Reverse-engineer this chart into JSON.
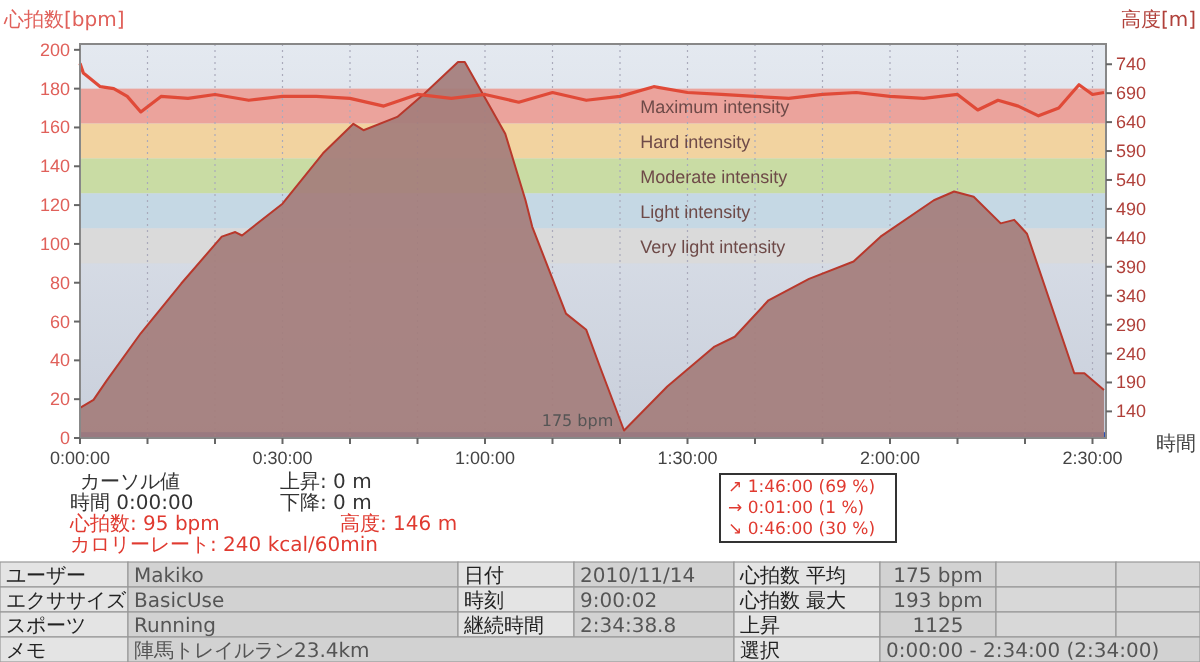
{
  "chart_data": {
    "type": "area",
    "ylabel": "心拍数[bpm]",
    "y2label": "高度[m]",
    "xlabel": "時間",
    "xlim": [
      0,
      152
    ],
    "xticks": [
      {
        "value": 0,
        "label": "0:00:00"
      },
      {
        "value": 10,
        "label": null
      },
      {
        "value": 20,
        "label": null
      },
      {
        "value": 30,
        "label": "0:30:00"
      },
      {
        "value": 40,
        "label": null
      },
      {
        "value": 50,
        "label": null
      },
      {
        "value": 60,
        "label": "1:00:00"
      },
      {
        "value": 70,
        "label": null
      },
      {
        "value": 80,
        "label": null
      },
      {
        "value": 90,
        "label": "1:30:00"
      },
      {
        "value": 100,
        "label": null
      },
      {
        "value": 110,
        "label": null
      },
      {
        "value": 120,
        "label": "2:00:00"
      },
      {
        "value": 130,
        "label": null
      },
      {
        "value": 140,
        "label": null
      },
      {
        "value": 150,
        "label": "2:30:00"
      }
    ],
    "ylim": [
      0,
      203
    ],
    "yticks": [
      0,
      20,
      40,
      60,
      80,
      100,
      120,
      140,
      160,
      180,
      200
    ],
    "y2lim": [
      94,
      775
    ],
    "y2ticks": [
      140,
      190,
      240,
      290,
      340,
      390,
      440,
      490,
      540,
      590,
      640,
      690,
      740
    ],
    "grid": "x",
    "bands": [
      {
        "axis": "y",
        "from": 162,
        "to": 180,
        "label": "Maximum intensity",
        "color": "#eba39c"
      },
      {
        "axis": "y",
        "from": 144,
        "to": 162,
        "label": "Hard intensity",
        "color": "#f2d3a0"
      },
      {
        "axis": "y",
        "from": 126,
        "to": 144,
        "label": "Moderate intensity",
        "color": "#c9dca4"
      },
      {
        "axis": "y",
        "from": 108,
        "to": 126,
        "label": "Light intensity",
        "color": "#c5d8e4"
      },
      {
        "axis": "y",
        "from": 90,
        "to": 108,
        "label": "Very light intensity",
        "color": "#dadada"
      },
      {
        "axis": "y",
        "from": 0,
        "to": 3,
        "color": "#2a50b8"
      }
    ],
    "series": [
      {
        "type": "area",
        "axis": "y2",
        "color": "#a47d7b",
        "x": [
          0,
          2,
          4,
          9,
          15,
          21,
          23,
          24,
          30,
          36,
          40.5,
          42,
          47,
          51,
          56,
          57,
          63,
          66,
          67,
          72,
          75,
          77,
          80.6,
          87,
          94,
          97,
          102,
          108,
          114.6,
          118.6,
          126.5,
          129.5,
          132.4,
          136.4,
          138.4,
          140.3,
          147.3,
          148.8,
          151.7
        ],
        "values": [
          146,
          160,
          194,
          275,
          361,
          442,
          450,
          444,
          499,
          586,
          637,
          626,
          649,
          689,
          744,
          744,
          620,
          505,
          459,
          309,
          281,
          218,
          107,
          183,
          252,
          269,
          332,
          369,
          399,
          442,
          505,
          520,
          511,
          465,
          471,
          447,
          206,
          206,
          177
        ]
      },
      {
        "type": "line",
        "color": "#e04a38",
        "x": [
          0,
          0.5,
          3,
          5,
          7,
          9,
          12,
          16,
          20,
          25,
          30,
          35,
          40,
          45,
          50,
          55,
          60,
          65,
          70,
          75,
          80,
          85,
          90,
          95,
          100,
          105,
          110,
          115,
          120,
          125,
          130,
          133,
          136,
          139,
          142,
          145,
          148,
          150,
          151.7
        ],
        "values": [
          193,
          188,
          181,
          180,
          176,
          168,
          176,
          175,
          177,
          174,
          176,
          176,
          175,
          171,
          177,
          175,
          177,
          173,
          178,
          174,
          176,
          181,
          178,
          177,
          176,
          175,
          177,
          178,
          176,
          175,
          177,
          169,
          174,
          171,
          166,
          170,
          182,
          177,
          178
        ]
      }
    ],
    "annotations": [
      "175 bpm",
      "カーソル値",
      "時間 0:00:00",
      "心拍数: 95 bpm",
      "カロリーレート: 240 kcal/60min",
      "高度: 146 m",
      "上昇: 0 m",
      "下降: 0 m",
      "↗ 1:46:00 (69 %)",
      "→ 0:01:00 (1 %)",
      "↘ 0:46:00 (30 %)",
      "ユーザー",
      "Makiko",
      "日付",
      "2010/11/14",
      "心拍数 平均",
      "175 bpm",
      "エクササイズ",
      "BasicUse",
      "時刻",
      "9:00:02",
      "心拍数 最大",
      "193 bpm",
      "スポーツ",
      "Running",
      "継続時間",
      "2:34:38.8",
      "上昇",
      "1125",
      "メモ",
      "陣馬トレイルラン23.4km",
      "選択",
      "0:00:00 - 2:34:00 (2:34:00)"
    ]
  }
}
